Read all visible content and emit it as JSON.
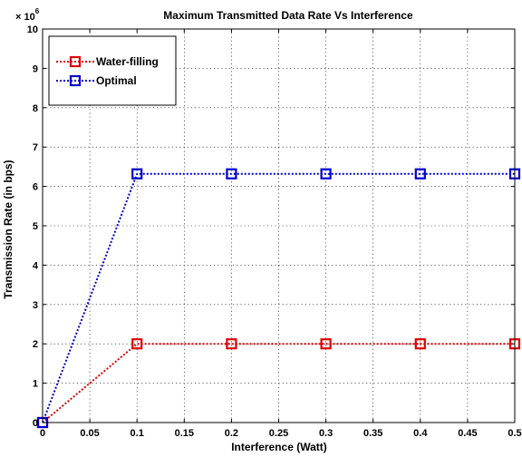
{
  "chart_data": {
    "type": "line",
    "title": "Maximum Transmitted Data Rate Vs Interference",
    "xlabel": "Interference (Watt)",
    "ylabel": "Transmission Rate (in bps)",
    "y_multiplier_label": "× 10",
    "y_multiplier_exponent": "6",
    "xlim": [
      0,
      0.5
    ],
    "ylim": [
      0,
      10
    ],
    "x_ticks": [
      0,
      0.05,
      0.1,
      0.15,
      0.2,
      0.25,
      0.3,
      0.35,
      0.4,
      0.45,
      0.5
    ],
    "x_tick_labels": [
      "0",
      "0.05",
      "0.1",
      "0.15",
      "0.2",
      "0.25",
      "0.3",
      "0.35",
      "0.4",
      "0.45",
      "0.5"
    ],
    "y_ticks": [
      0,
      1,
      2,
      3,
      4,
      5,
      6,
      7,
      8,
      9,
      10
    ],
    "y_tick_labels": [
      "0",
      "1",
      "2",
      "3",
      "4",
      "5",
      "6",
      "7",
      "8",
      "9",
      "10"
    ],
    "grid": true,
    "legend_position": "top-left",
    "series": [
      {
        "name": "Water-filling",
        "color": "#dd0000",
        "line_style": "dotted",
        "marker": "square",
        "x": [
          0,
          0.1,
          0.2,
          0.3,
          0.4,
          0.5
        ],
        "y": [
          0,
          2.0,
          2.0,
          2.0,
          2.0,
          2.0
        ]
      },
      {
        "name": "Optimal",
        "color": "#0000cc",
        "line_style": "dotted",
        "marker": "square",
        "x": [
          0,
          0.1,
          0.2,
          0.3,
          0.4,
          0.5
        ],
        "y": [
          0,
          6.32,
          6.32,
          6.32,
          6.32,
          6.32
        ]
      }
    ]
  }
}
